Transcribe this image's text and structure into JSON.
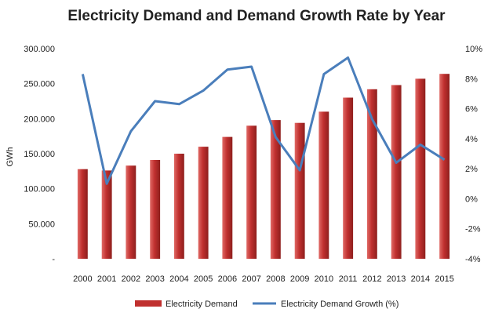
{
  "chart_data": {
    "type": "bar",
    "title": "Electricity Demand and Demand Growth Rate by Year",
    "ylabel": "GWh",
    "y2label": "",
    "categories": [
      "2000",
      "2001",
      "2002",
      "2003",
      "2004",
      "2005",
      "2006",
      "2007",
      "2008",
      "2009",
      "2010",
      "2011",
      "2012",
      "2013",
      "2014",
      "2015"
    ],
    "series": [
      {
        "name": "Electricity Demand",
        "type": "bar",
        "axis": "left",
        "color": "#c0302f",
        "values": [
          128000,
          126000,
          133000,
          141000,
          150000,
          160000,
          174000,
          190000,
          198000,
          194000,
          210000,
          230000,
          242000,
          248000,
          257000,
          264000
        ]
      },
      {
        "name": "Electricity Demand Growth (%)",
        "type": "line",
        "axis": "right",
        "color": "#4a7ebb",
        "values": [
          8.3,
          1.0,
          4.5,
          6.5,
          6.3,
          7.2,
          8.6,
          8.8,
          4.1,
          1.9,
          8.3,
          9.4,
          5.3,
          2.4,
          3.6,
          2.6
        ]
      }
    ],
    "yticks": [
      "-",
      "50.000",
      "100.000",
      "150.000",
      "200.000",
      "250.000",
      "300.000"
    ],
    "ylim": [
      0,
      300000
    ],
    "y2ticks": [
      "-4%",
      "-2%",
      "0%",
      "2%",
      "4%",
      "6%",
      "8%",
      "10%"
    ],
    "y2lim": [
      -4,
      10
    ],
    "legend_position": "bottom",
    "grid": false
  }
}
